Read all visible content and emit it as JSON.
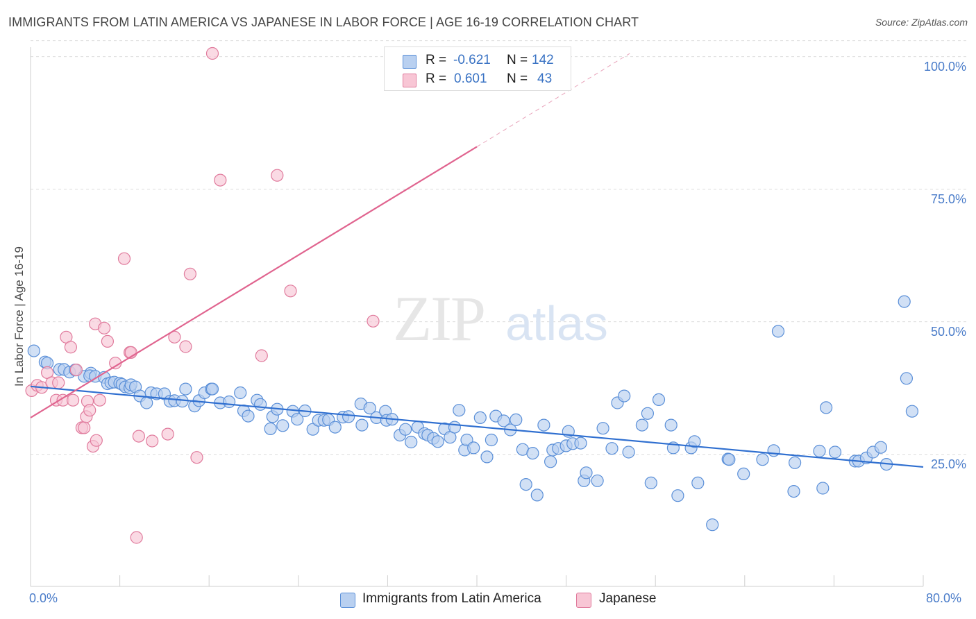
{
  "title": "IMMIGRANTS FROM LATIN AMERICA VS JAPANESE IN LABOR FORCE | AGE 16-19 CORRELATION CHART",
  "source": "Source: ZipAtlas.com",
  "watermark": "ZIPatlas",
  "legend": {
    "r_label": "R =",
    "n_label": "N =",
    "rows": [
      {
        "name": "Immigrants from Latin America",
        "r": "-0.621",
        "n": "142",
        "color": "#5a8fd8",
        "fill": "#b9d0f0"
      },
      {
        "name": "Japanese",
        "r": "0.601",
        "n": "43",
        "color": "#e07a9c",
        "fill": "#f8c6d5"
      }
    ]
  },
  "chart_data": {
    "type": "scatter",
    "title": "IMMIGRANTS FROM LATIN AMERICA VS JAPANESE IN LABOR FORCE | AGE 16-19 CORRELATION CHART",
    "xlabel": "",
    "ylabel": "In Labor Force | Age 16-19",
    "xlim": [
      0,
      80
    ],
    "ylim": [
      0,
      103
    ],
    "x_tick_labels": [
      "0.0%",
      "80.0%"
    ],
    "y_ticks": [
      25,
      50,
      75,
      100
    ],
    "y_tick_labels": [
      "25.0%",
      "50.0%",
      "75.0%",
      "100.0%"
    ],
    "grid": true,
    "legend_position": "top-center",
    "series": [
      {
        "name": "Immigrants from Latin America",
        "color": "#5a8fd8",
        "trend": {
          "x0": 0,
          "y0": 37.8,
          "x1": 80,
          "y1": 22.6
        },
        "points": [
          [
            0.3,
            44.5
          ],
          [
            1.3,
            42.4
          ],
          [
            1.5,
            42.2
          ],
          [
            2.6,
            41.0
          ],
          [
            3.0,
            41.0
          ],
          [
            3.5,
            40.5
          ],
          [
            4.0,
            40.9
          ],
          [
            4.8,
            39.7
          ],
          [
            5.4,
            40.3
          ],
          [
            5.3,
            39.8
          ],
          [
            5.8,
            39.7
          ],
          [
            6.6,
            39.5
          ],
          [
            6.9,
            38.3
          ],
          [
            7.2,
            38.5
          ],
          [
            7.5,
            38.6
          ],
          [
            8.0,
            38.4
          ],
          [
            8.2,
            38.2
          ],
          [
            8.5,
            37.7
          ],
          [
            8.9,
            37.5
          ],
          [
            9.0,
            38.1
          ],
          [
            9.4,
            37.7
          ],
          [
            9.8,
            36.0
          ],
          [
            10.4,
            34.7
          ],
          [
            10.8,
            36.6
          ],
          [
            11.3,
            36.4
          ],
          [
            12.0,
            36.4
          ],
          [
            12.5,
            35.0
          ],
          [
            12.9,
            35.1
          ],
          [
            13.6,
            35.0
          ],
          [
            13.9,
            37.3
          ],
          [
            14.7,
            34.1
          ],
          [
            15.1,
            35.1
          ],
          [
            15.6,
            36.6
          ],
          [
            16.2,
            37.3
          ],
          [
            16.3,
            37.3
          ],
          [
            17.0,
            34.7
          ],
          [
            17.8,
            34.9
          ],
          [
            18.8,
            36.6
          ],
          [
            19.1,
            33.2
          ],
          [
            19.5,
            32.2
          ],
          [
            20.3,
            35.2
          ],
          [
            20.6,
            34.4
          ],
          [
            21.5,
            29.8
          ],
          [
            21.7,
            32.1
          ],
          [
            22.1,
            33.5
          ],
          [
            22.6,
            30.4
          ],
          [
            23.5,
            33.1
          ],
          [
            23.9,
            31.6
          ],
          [
            24.6,
            33.2
          ],
          [
            25.3,
            29.7
          ],
          [
            25.8,
            31.4
          ],
          [
            26.3,
            31.4
          ],
          [
            26.7,
            31.5
          ],
          [
            27.3,
            30.1
          ],
          [
            28.0,
            32.0
          ],
          [
            28.5,
            32.1
          ],
          [
            29.6,
            34.5
          ],
          [
            29.7,
            30.5
          ],
          [
            30.4,
            33.7
          ],
          [
            31.0,
            31.9
          ],
          [
            31.8,
            33.1
          ],
          [
            31.9,
            31.4
          ],
          [
            32.4,
            31.6
          ],
          [
            33.1,
            28.6
          ],
          [
            33.6,
            29.7
          ],
          [
            34.1,
            27.3
          ],
          [
            34.7,
            30.1
          ],
          [
            35.3,
            28.9
          ],
          [
            35.6,
            28.6
          ],
          [
            36.1,
            28.0
          ],
          [
            36.5,
            27.4
          ],
          [
            37.1,
            29.8
          ],
          [
            37.6,
            28.2
          ],
          [
            38.0,
            30.1
          ],
          [
            38.4,
            33.3
          ],
          [
            38.9,
            25.8
          ],
          [
            39.1,
            27.7
          ],
          [
            39.7,
            26.2
          ],
          [
            40.3,
            31.9
          ],
          [
            40.9,
            24.5
          ],
          [
            41.3,
            27.7
          ],
          [
            41.7,
            32.2
          ],
          [
            42.4,
            31.3
          ],
          [
            43.0,
            29.6
          ],
          [
            43.5,
            31.5
          ],
          [
            44.1,
            25.9
          ],
          [
            44.4,
            19.3
          ],
          [
            45.0,
            25.2
          ],
          [
            45.4,
            17.3
          ],
          [
            46.0,
            30.5
          ],
          [
            46.6,
            23.6
          ],
          [
            46.8,
            25.8
          ],
          [
            47.3,
            26.1
          ],
          [
            48.0,
            26.6
          ],
          [
            48.2,
            29.3
          ],
          [
            48.6,
            27.0
          ],
          [
            49.3,
            27.1
          ],
          [
            49.6,
            20.0
          ],
          [
            49.8,
            21.5
          ],
          [
            50.8,
            20.0
          ],
          [
            51.3,
            29.9
          ],
          [
            52.1,
            26.1
          ],
          [
            52.6,
            34.7
          ],
          [
            53.2,
            36.0
          ],
          [
            53.6,
            25.4
          ],
          [
            54.8,
            30.5
          ],
          [
            55.3,
            32.7
          ],
          [
            55.6,
            19.6
          ],
          [
            56.3,
            35.3
          ],
          [
            57.4,
            30.5
          ],
          [
            57.6,
            26.2
          ],
          [
            58.0,
            17.2
          ],
          [
            59.2,
            26.2
          ],
          [
            59.5,
            27.4
          ],
          [
            59.8,
            19.6
          ],
          [
            61.1,
            11.7
          ],
          [
            62.5,
            24.1
          ],
          [
            62.6,
            24.0
          ],
          [
            63.9,
            21.3
          ],
          [
            65.6,
            24.0
          ],
          [
            66.6,
            25.7
          ],
          [
            67.0,
            48.2
          ],
          [
            68.4,
            18.0
          ],
          [
            68.5,
            23.4
          ],
          [
            70.7,
            25.6
          ],
          [
            71.0,
            18.6
          ],
          [
            71.3,
            33.8
          ],
          [
            72.1,
            25.4
          ],
          [
            73.9,
            23.7
          ],
          [
            74.2,
            23.7
          ],
          [
            74.9,
            24.3
          ],
          [
            75.5,
            25.4
          ],
          [
            76.2,
            26.3
          ],
          [
            76.7,
            23.1
          ],
          [
            78.3,
            53.8
          ],
          [
            78.5,
            39.3
          ],
          [
            79.0,
            33.1
          ]
        ]
      },
      {
        "name": "Japanese",
        "color": "#e07a9c",
        "trend": {
          "x0": 0,
          "y0": 31.9,
          "x1": 40,
          "y1": 83.0,
          "dash_to": {
            "x": 53.7,
            "y": 100.6
          }
        },
        "points": [
          [
            0.1,
            37.0
          ],
          [
            0.6,
            38.0
          ],
          [
            1.0,
            37.6
          ],
          [
            1.5,
            40.4
          ],
          [
            1.9,
            38.5
          ],
          [
            2.3,
            35.2
          ],
          [
            2.5,
            38.5
          ],
          [
            2.9,
            35.2
          ],
          [
            3.2,
            47.1
          ],
          [
            3.6,
            45.2
          ],
          [
            3.8,
            35.2
          ],
          [
            4.1,
            40.9
          ],
          [
            4.6,
            30.0
          ],
          [
            4.8,
            30.0
          ],
          [
            5.0,
            32.1
          ],
          [
            5.1,
            35.0
          ],
          [
            5.3,
            33.3
          ],
          [
            5.6,
            26.5
          ],
          [
            5.8,
            49.6
          ],
          [
            5.9,
            27.6
          ],
          [
            6.2,
            35.2
          ],
          [
            6.6,
            48.8
          ],
          [
            6.9,
            46.3
          ],
          [
            7.6,
            42.2
          ],
          [
            8.4,
            61.9
          ],
          [
            8.9,
            44.2
          ],
          [
            9.0,
            44.2
          ],
          [
            9.5,
            9.3
          ],
          [
            9.7,
            28.4
          ],
          [
            10.9,
            27.5
          ],
          [
            12.3,
            28.8
          ],
          [
            12.9,
            47.1
          ],
          [
            13.9,
            45.3
          ],
          [
            14.3,
            59.0
          ],
          [
            14.9,
            24.4
          ],
          [
            16.3,
            100.6
          ],
          [
            17.0,
            76.7
          ],
          [
            20.7,
            43.6
          ],
          [
            22.1,
            77.6
          ],
          [
            23.3,
            55.8
          ],
          [
            30.7,
            50.1
          ]
        ]
      }
    ]
  }
}
